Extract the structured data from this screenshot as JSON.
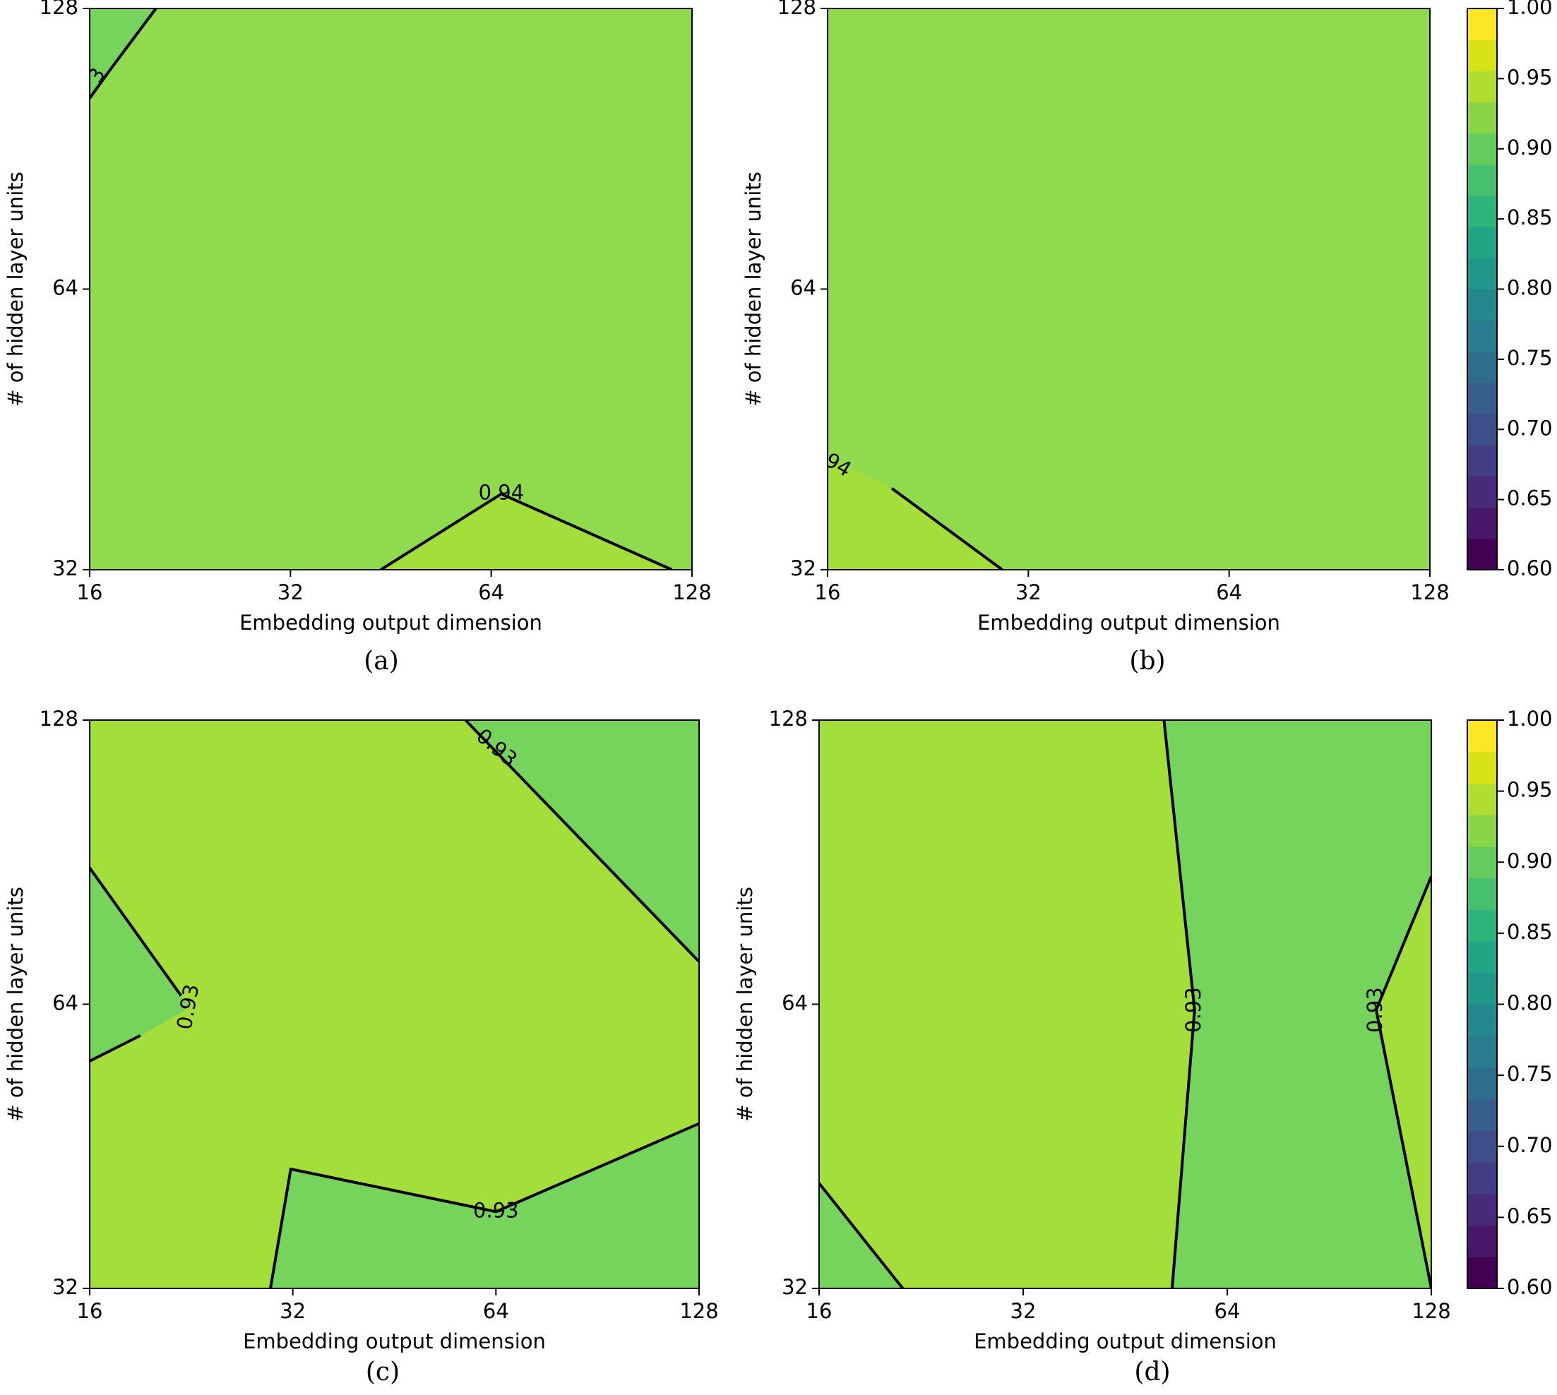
{
  "chart_data": [
    {
      "panel": "(a)",
      "type": "contour",
      "xlabel": "Embedding output dimension",
      "ylabel": "# of hidden layer units",
      "x_ticks": [
        "16",
        "32",
        "64",
        "128"
      ],
      "y_ticks": [
        "32",
        "64",
        "128"
      ],
      "xlim": [
        "16",
        "128"
      ],
      "ylim": [
        "32",
        "128"
      ],
      "levels": [
        0.93,
        0.94
      ],
      "contour_labels": [
        {
          "text": "0.94",
          "x": 2.05,
          "y": 0.27,
          "rotate": 0
        },
        {
          "text": "3",
          "x": 0.04,
          "y": 1.76,
          "rotate": -60
        }
      ],
      "regions": [
        {
          "level_band": "0.925-0.94",
          "color": "#8fda4d",
          "points": [
            [
              0,
              0
            ],
            [
              3,
              0
            ],
            [
              3,
              2
            ],
            [
              0,
              2
            ]
          ]
        },
        {
          "level_band": "0.91-0.925",
          "color": "#76d45c",
          "points": [
            [
              0,
              2
            ],
            [
              0.33,
              2
            ],
            [
              0.09,
              1.77
            ],
            [
              0,
              1.68
            ]
          ]
        },
        {
          "level_band": "0.94-0.955",
          "color": "#a4de3a",
          "points": [
            [
              1.45,
              0
            ],
            [
              2.05,
              0.27
            ],
            [
              2.9,
              0
            ]
          ]
        }
      ],
      "contour_lines": [
        [
          [
            0.33,
            2
          ],
          [
            0.09,
            1.77
          ],
          [
            0,
            1.68
          ]
        ],
        [
          [
            1.45,
            0
          ],
          [
            2.05,
            0.27
          ],
          [
            2.9,
            0
          ]
        ]
      ]
    },
    {
      "panel": "(b)",
      "type": "contour",
      "xlabel": "Embedding output dimension",
      "ylabel": "# of hidden layer units",
      "x_ticks": [
        "16",
        "32",
        "64",
        "128"
      ],
      "y_ticks": [
        "32",
        "64",
        "128"
      ],
      "xlim": [
        "16",
        "128"
      ],
      "ylim": [
        "32",
        "128"
      ],
      "levels": [
        0.94
      ],
      "contour_labels": [
        {
          "text": "94",
          "x": 0.05,
          "y": 0.37,
          "rotate": 30
        }
      ],
      "regions": [
        {
          "level_band": "0.925-0.94",
          "color": "#8fda4d",
          "points": [
            [
              0,
              0
            ],
            [
              3,
              0
            ],
            [
              3,
              2
            ],
            [
              0,
              2
            ]
          ]
        },
        {
          "level_band": "0.94-0.955",
          "color": "#a4de3a",
          "points": [
            [
              0,
              0
            ],
            [
              0.87,
              0
            ],
            [
              0.32,
              0.29
            ],
            [
              0,
              0.4
            ]
          ]
        }
      ],
      "contour_lines": [
        [
          [
            0.87,
            0
          ],
          [
            0.32,
            0.29
          ]
        ]
      ]
    },
    {
      "panel": "(c)",
      "type": "contour",
      "xlabel": "Embedding output dimension",
      "ylabel": "# of hidden layer units",
      "x_ticks": [
        "16",
        "32",
        "64",
        "128"
      ],
      "y_ticks": [
        "32",
        "64",
        "128"
      ],
      "xlim": [
        "16",
        "128"
      ],
      "ylim": [
        "32",
        "128"
      ],
      "levels": [
        0.93
      ],
      "contour_labels": [
        {
          "text": "0.93",
          "x": 2.0,
          "y": 0.27,
          "rotate": 0
        },
        {
          "text": "0.93",
          "x": 2.0,
          "y": 1.9,
          "rotate": 40
        },
        {
          "text": "0.93",
          "x": 0.49,
          "y": 0.99,
          "rotate": -80
        }
      ],
      "regions": [
        {
          "level_band": "0.93-0.945",
          "color": "#a4de3a",
          "points": [
            [
              0,
              0
            ],
            [
              3,
              0
            ],
            [
              3,
              2
            ],
            [
              0,
              2
            ]
          ]
        },
        {
          "level_band": "0.915-0.93",
          "color": "#76d45c",
          "points": [
            [
              0.89,
              0
            ],
            [
              3,
              0
            ],
            [
              3,
              0.58
            ],
            [
              2.0,
              0.27
            ],
            [
              0.99,
              0.42
            ]
          ]
        },
        {
          "level_band": "0.915-0.93",
          "color": "#76d45c",
          "points": [
            [
              1.85,
              2
            ],
            [
              3,
              2
            ],
            [
              3,
              1.15
            ]
          ]
        },
        {
          "level_band": "0.915-0.93",
          "color": "#76d45c",
          "points": [
            [
              0,
              1.48
            ],
            [
              0.45,
              1.03
            ],
            [
              0.49,
              0.99
            ],
            [
              0.25,
              0.89
            ],
            [
              0,
              0.8
            ]
          ]
        }
      ],
      "contour_lines": [
        [
          [
            0.89,
            0
          ],
          [
            0.99,
            0.42
          ],
          [
            2.0,
            0.27
          ],
          [
            3,
            0.58
          ]
        ],
        [
          [
            1.85,
            2
          ],
          [
            3,
            1.15
          ]
        ],
        [
          [
            0,
            1.48
          ],
          [
            0.45,
            1.03
          ]
        ],
        [
          [
            0.25,
            0.89
          ],
          [
            0,
            0.8
          ]
        ]
      ]
    },
    {
      "panel": "(d)",
      "type": "contour",
      "xlabel": "Embedding output dimension",
      "ylabel": "# of hidden layer units",
      "x_ticks": [
        "16",
        "32",
        "64",
        "128"
      ],
      "y_ticks": [
        "32",
        "64",
        "128"
      ],
      "xlim": [
        "16",
        "128"
      ],
      "ylim": [
        "32",
        "128"
      ],
      "levels": [
        0.93
      ],
      "contour_labels": [
        {
          "text": "0.93",
          "x": 1.84,
          "y": 0.98,
          "rotate": -90
        },
        {
          "text": "0.93",
          "x": 2.73,
          "y": 0.98,
          "rotate": -90
        }
      ],
      "regions": [
        {
          "level_band": "0.93-0.945",
          "color": "#a4de3a",
          "points": [
            [
              0,
              0
            ],
            [
              3,
              0
            ],
            [
              3,
              2
            ],
            [
              0,
              2
            ]
          ]
        },
        {
          "level_band": "0.915-0.93",
          "color": "#76d45c",
          "points": [
            [
              1.73,
              0
            ],
            [
              3,
              0
            ],
            [
              2.73,
              0.98
            ],
            [
              3,
              1.45
            ],
            [
              3,
              2
            ],
            [
              1.69,
              2
            ],
            [
              1.84,
              0.98
            ]
          ]
        },
        {
          "level_band": "0.915-0.93",
          "color": "#76d45c",
          "points": [
            [
              0,
              0
            ],
            [
              0.41,
              0
            ],
            [
              0,
              0.37
            ]
          ]
        }
      ],
      "contour_lines": [
        [
          [
            1.69,
            2
          ],
          [
            1.84,
            0.98
          ],
          [
            1.73,
            0
          ]
        ],
        [
          [
            3,
            1.45
          ],
          [
            2.73,
            0.98
          ],
          [
            3,
            0
          ]
        ],
        [
          [
            0,
            0.37
          ],
          [
            0.41,
            0
          ]
        ]
      ]
    }
  ],
  "colorbars": [
    {
      "ticks": [
        "0.60",
        "0.65",
        "0.70",
        "0.75",
        "0.80",
        "0.85",
        "0.90",
        "0.95",
        "1.00"
      ],
      "range": [
        0.6,
        1.0
      ],
      "bands": [
        "#440154",
        "#481769",
        "#472a7a",
        "#433d84",
        "#3d4e8a",
        "#355e8d",
        "#2e6d8e",
        "#297b8e",
        "#23898e",
        "#1f978b",
        "#21a585",
        "#2eb37c",
        "#46c06f",
        "#65cb5e",
        "#89d548",
        "#b0dd2f",
        "#d8e219",
        "#fde725"
      ]
    }
  ],
  "captions": [
    "(a)",
    "(b)",
    "(c)",
    "(d)"
  ]
}
